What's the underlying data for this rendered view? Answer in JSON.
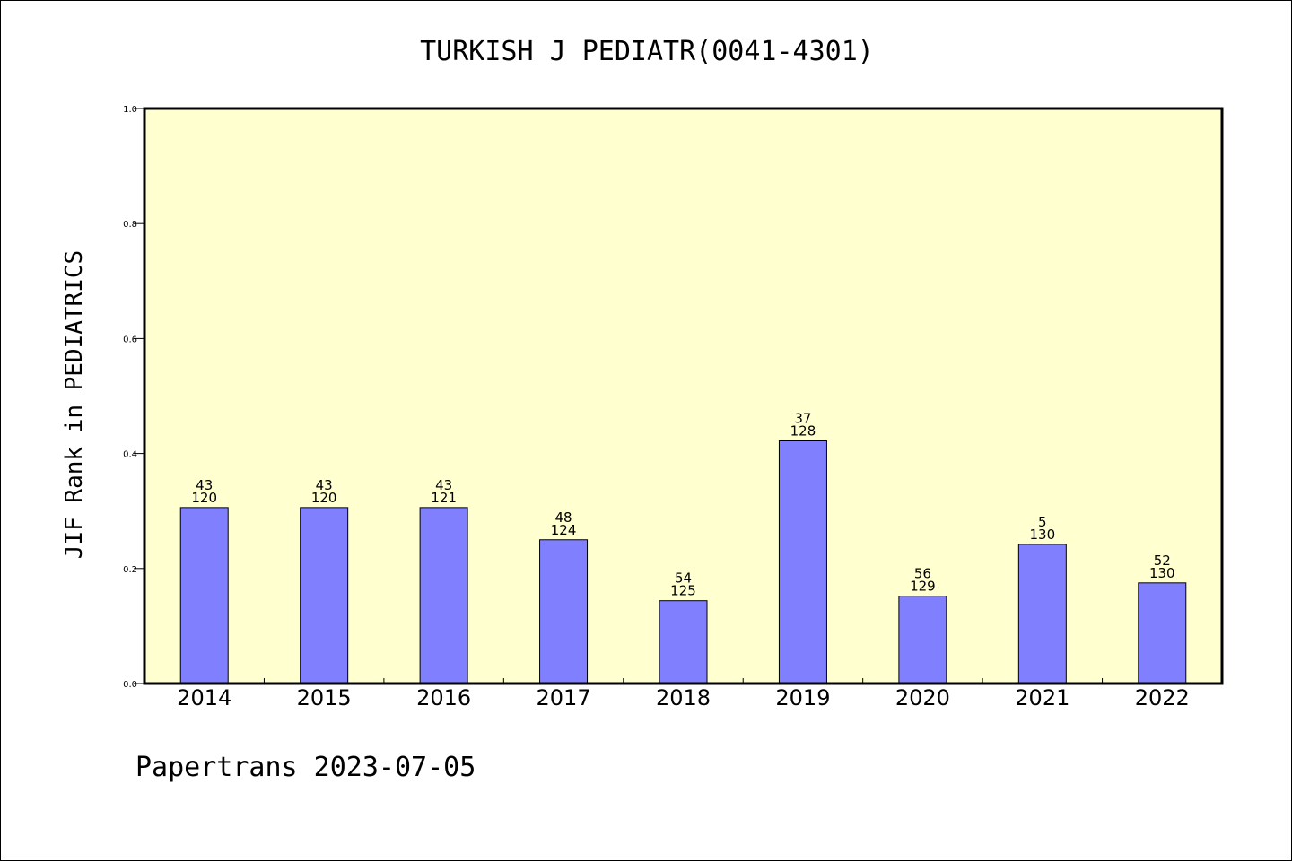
{
  "chart_data": {
    "type": "bar",
    "title": "TURKISH J PEDIATR(0041-4301)",
    "ylabel": "JIF Rank in PEDIATRICS",
    "xlabel": "",
    "ylim": [
      0.0,
      1.0
    ],
    "yticks": [
      "0.0",
      "0.2",
      "0.4",
      "0.6",
      "0.8",
      "1.0"
    ],
    "ytick_values": [
      0.0,
      0.2,
      0.4,
      0.6,
      0.8,
      1.0
    ],
    "categories": [
      "2014",
      "2015",
      "2016",
      "2017",
      "2018",
      "2019",
      "2020",
      "2021",
      "2022"
    ],
    "values": [
      0.306,
      0.306,
      0.306,
      0.25,
      0.144,
      0.422,
      0.152,
      0.242,
      0.175
    ],
    "ranks": [
      "43",
      "43",
      "43",
      "48",
      "54",
      "37",
      "56",
      "5",
      "52"
    ],
    "totals": [
      "120",
      "120",
      "121",
      "124",
      "125",
      "128",
      "129",
      "130",
      "130"
    ],
    "grid": false,
    "plot_background": "#ffffd0",
    "bar_color": "#8080ff"
  },
  "footer": "Papertrans 2023-07-05"
}
